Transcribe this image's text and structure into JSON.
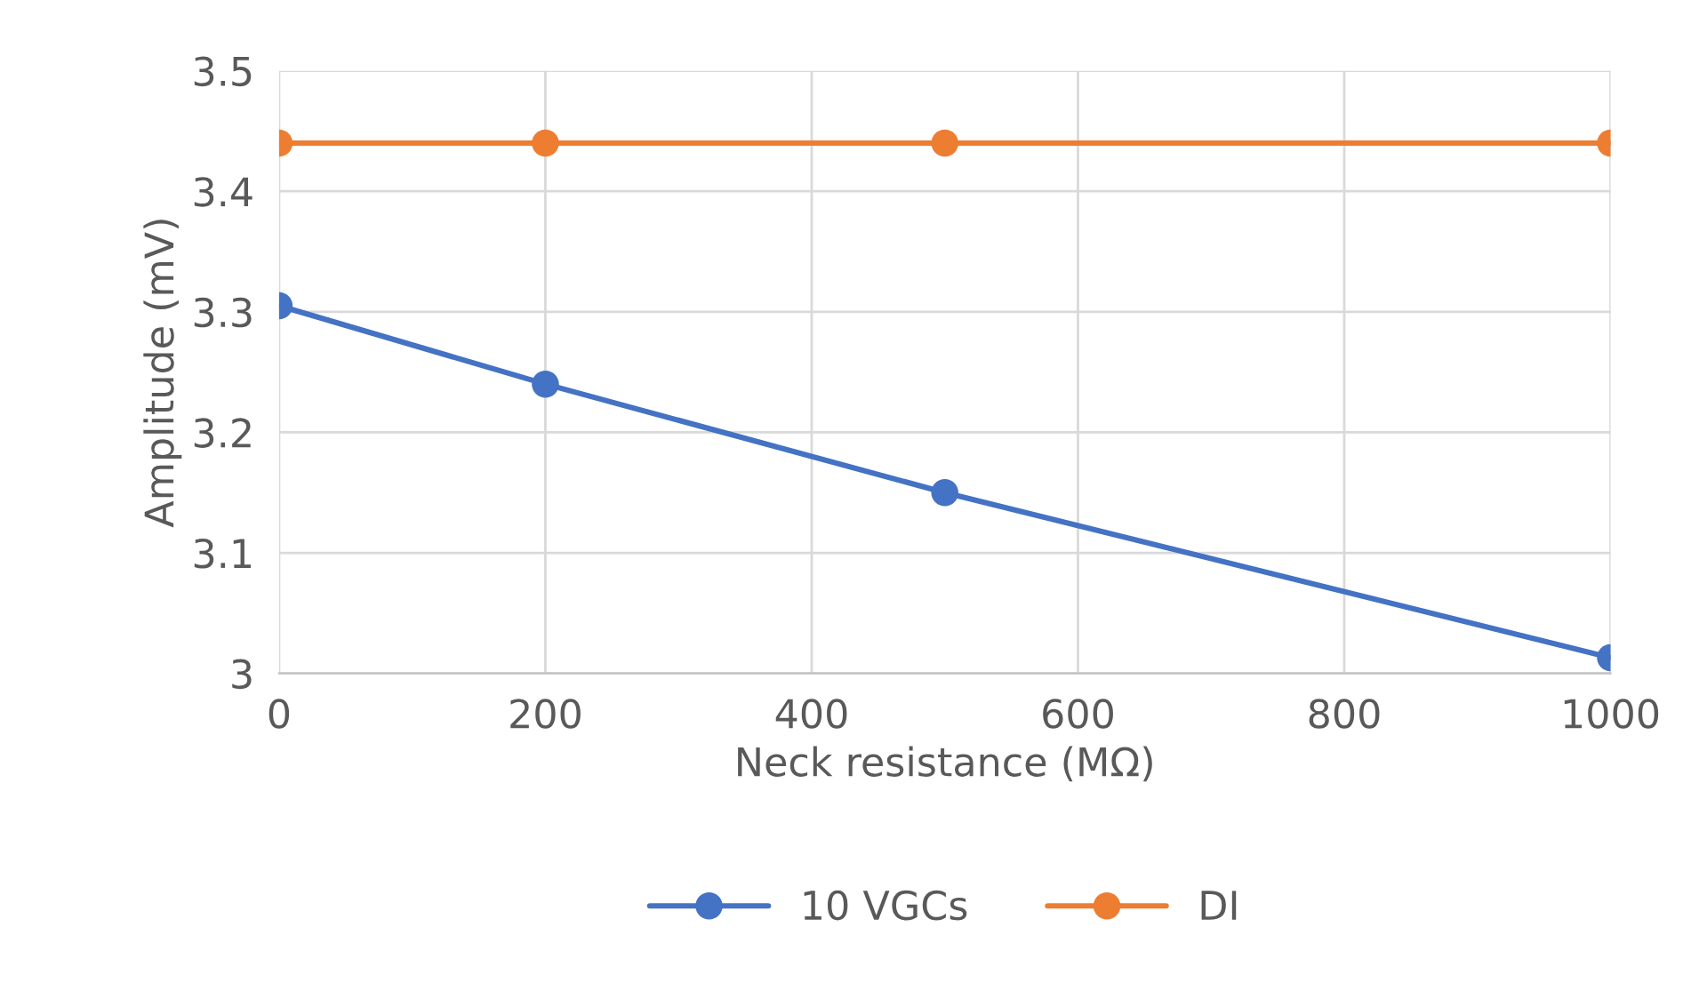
{
  "chart_data": {
    "type": "line",
    "xlabel": "Neck resistance (MΩ)",
    "ylabel": "Amplitude (mV)",
    "x": [
      0,
      200,
      500,
      1000
    ],
    "series": [
      {
        "name": "10 VGCs",
        "color": "#4472c4",
        "values": [
          3.305,
          3.24,
          3.15,
          3.013
        ]
      },
      {
        "name": "DI",
        "color": "#ed7d31",
        "values": [
          3.44,
          3.44,
          3.44,
          3.44
        ]
      }
    ],
    "xlim": [
      0,
      1000
    ],
    "xticks": [
      0,
      200,
      400,
      600,
      800,
      1000
    ],
    "ylim": [
      3,
      3.5
    ],
    "yticks": [
      {
        "value": 3,
        "label": "3"
      },
      3.1,
      3.2,
      3.3,
      3.4,
      3.5
    ],
    "grid": true,
    "legend": "bottom",
    "marker": "circle",
    "line_style": "solid"
  }
}
